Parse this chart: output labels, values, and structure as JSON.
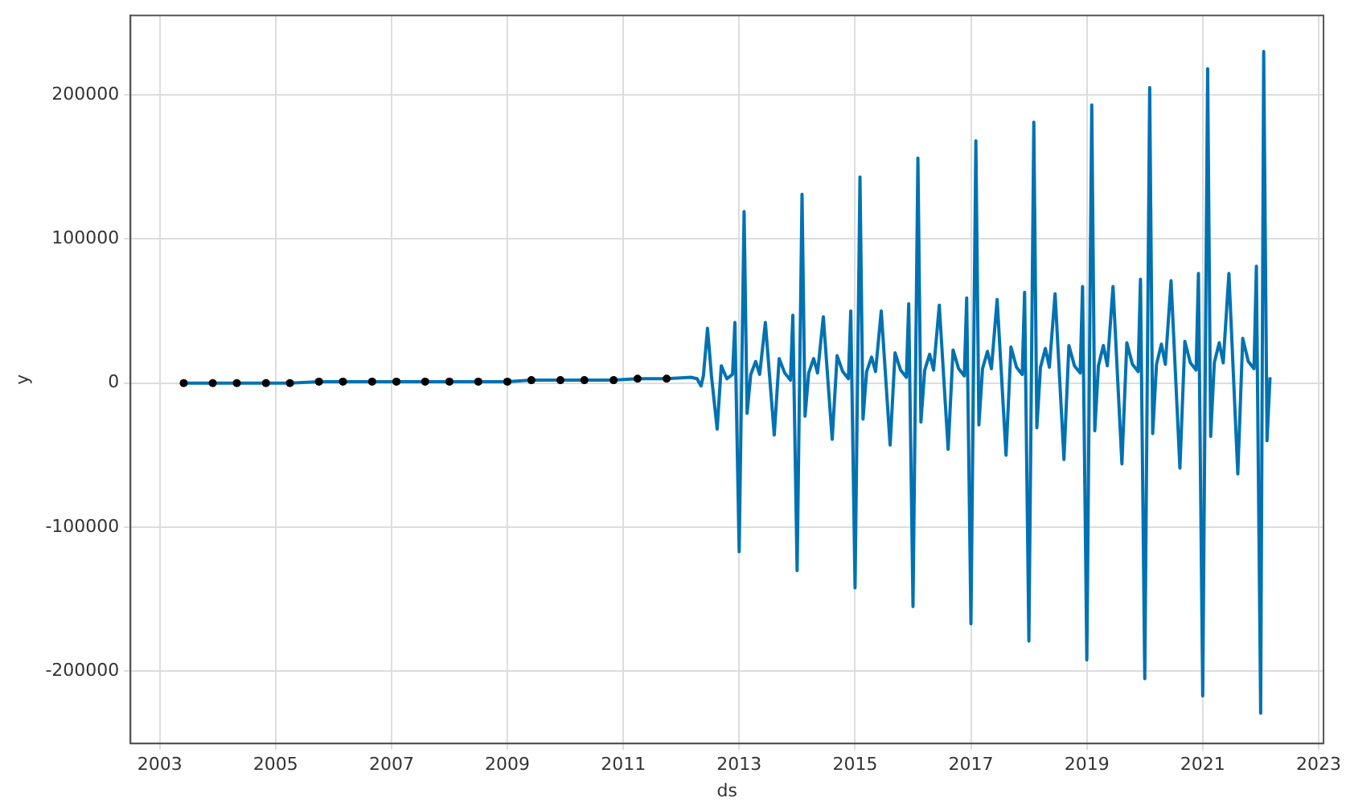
{
  "chart_data": {
    "type": "line",
    "xlabel": "ds",
    "ylabel": "y",
    "xlim": [
      "2002-07",
      "2023-02"
    ],
    "xticks": [
      "2003",
      "2005",
      "2007",
      "2009",
      "2011",
      "2013",
      "2015",
      "2017",
      "2019",
      "2021",
      "2023"
    ],
    "ylim": [
      -250000,
      255000
    ],
    "yticks": [
      -200000,
      -100000,
      0,
      100000,
      200000
    ],
    "grid": true,
    "legend": false,
    "series": [
      {
        "type": "scatter",
        "marker": "circle",
        "color": "#000000",
        "x": [
          "2003-06",
          "2003-12",
          "2004-05",
          "2004-11",
          "2005-04",
          "2005-10",
          "2006-03",
          "2006-09",
          "2007-02",
          "2007-08",
          "2008-01",
          "2008-07",
          "2009-01",
          "2009-06",
          "2009-12",
          "2010-05",
          "2010-11",
          "2011-04",
          "2011-10"
        ],
        "values": [
          0,
          0,
          0,
          0,
          0,
          1000,
          1000,
          1000,
          1000,
          1000,
          1000,
          1000,
          1000,
          2000,
          2000,
          2000,
          2000,
          3000,
          3000
        ]
      },
      {
        "marker": "none",
        "color": "#0072b2",
        "x": [
          "2003-06",
          "2003-12",
          "2004-05",
          "2004-11",
          "2005-04",
          "2005-10",
          "2006-03",
          "2006-09",
          "2007-02",
          "2007-08",
          "2008-01",
          "2008-07",
          "2009-01",
          "2009-06",
          "2009-12",
          "2010-05",
          "2010-11",
          "2011-04",
          "2011-10",
          "2012-03",
          "2012-04-10",
          "2012-05-05",
          "2012-05-20",
          "2012-06-15",
          "2012-07-10",
          "2012-08-15",
          "2012-09-10",
          "2012-10-15",
          "2012-11-20",
          "2012-12-05",
          "2013-01-01",
          "2013-02-01",
          "2013-02-20",
          "2013-03-15",
          "2013-04-15",
          "2013-05-10",
          "2013-06-15",
          "2013-08-10",
          "2013-09-10",
          "2013-10-15",
          "2013-11-20",
          "2013-12-05",
          "2014-01-01",
          "2014-02-01",
          "2014-02-20",
          "2014-03-15",
          "2014-04-15",
          "2014-05-10",
          "2014-06-15",
          "2014-08-10",
          "2014-09-10",
          "2014-10-15",
          "2014-11-20",
          "2014-12-05",
          "2015-01-01",
          "2015-02-01",
          "2015-02-20",
          "2015-03-15",
          "2015-04-15",
          "2015-05-10",
          "2015-06-15",
          "2015-08-10",
          "2015-09-10",
          "2015-10-15",
          "2015-11-20",
          "2015-12-05",
          "2016-01-01",
          "2016-02-01",
          "2016-02-20",
          "2016-03-15",
          "2016-04-15",
          "2016-05-10",
          "2016-06-15",
          "2016-08-10",
          "2016-09-10",
          "2016-10-15",
          "2016-11-20",
          "2016-12-05",
          "2017-01-01",
          "2017-02-01",
          "2017-02-20",
          "2017-03-15",
          "2017-04-15",
          "2017-05-10",
          "2017-06-15",
          "2017-08-10",
          "2017-09-10",
          "2017-10-15",
          "2017-11-20",
          "2017-12-05",
          "2018-01-01",
          "2018-02-01",
          "2018-02-20",
          "2018-03-15",
          "2018-04-15",
          "2018-05-10",
          "2018-06-15",
          "2018-08-10",
          "2018-09-10",
          "2018-10-15",
          "2018-11-20",
          "2018-12-05",
          "2019-01-01",
          "2019-02-01",
          "2019-02-20",
          "2019-03-15",
          "2019-04-15",
          "2019-05-10",
          "2019-06-15",
          "2019-08-10",
          "2019-09-10",
          "2019-10-15",
          "2019-11-20",
          "2019-12-05",
          "2020-01-01",
          "2020-02-01",
          "2020-02-20",
          "2020-03-15",
          "2020-04-15",
          "2020-05-10",
          "2020-06-15",
          "2020-08-10",
          "2020-09-10",
          "2020-10-15",
          "2020-11-20",
          "2020-12-05",
          "2021-01-01",
          "2021-02-01",
          "2021-02-20",
          "2021-03-15",
          "2021-04-15",
          "2021-05-10",
          "2021-06-15",
          "2021-08-10",
          "2021-09-10",
          "2021-10-15",
          "2021-11-20",
          "2021-12-05",
          "2022-01-01",
          "2022-01-20",
          "2022-02-10",
          "2022-03-01"
        ],
        "values": [
          0,
          0,
          0,
          0,
          0,
          1000,
          1000,
          1000,
          1000,
          1000,
          1000,
          1000,
          1000,
          2000,
          2000,
          2000,
          2000,
          3000,
          3000,
          4000,
          3000,
          -2000,
          5000,
          38000,
          5000,
          -32000,
          12000,
          3000,
          6000,
          42000,
          -117000,
          119000,
          -21000,
          6000,
          15000,
          6000,
          42000,
          -36000,
          17000,
          7000,
          2000,
          47000,
          -130000,
          131000,
          -23000,
          7000,
          17000,
          7000,
          46000,
          -39000,
          19000,
          8000,
          3000,
          50000,
          -142000,
          143000,
          -25000,
          8000,
          18000,
          8000,
          50000,
          -43000,
          21000,
          9000,
          4000,
          55000,
          -155000,
          156000,
          -27000,
          9000,
          20000,
          9000,
          54000,
          -46000,
          23000,
          10000,
          5000,
          59000,
          -167000,
          168000,
          -29000,
          10000,
          22000,
          10000,
          58000,
          -50000,
          25000,
          11000,
          6000,
          63000,
          -179000,
          181000,
          -31000,
          11000,
          24000,
          11000,
          62000,
          -53000,
          26000,
          12000,
          7000,
          67000,
          -192000,
          193000,
          -33000,
          12000,
          26000,
          12000,
          67000,
          -56000,
          28000,
          13000,
          8000,
          72000,
          -205000,
          205000,
          -35000,
          13000,
          27000,
          13000,
          71000,
          -59000,
          29000,
          14000,
          9000,
          76000,
          -217000,
          218000,
          -37000,
          14000,
          28000,
          14000,
          76000,
          -63000,
          31000,
          15000,
          10000,
          81000,
          -229000,
          230000,
          -40000,
          4000
        ]
      }
    ]
  }
}
